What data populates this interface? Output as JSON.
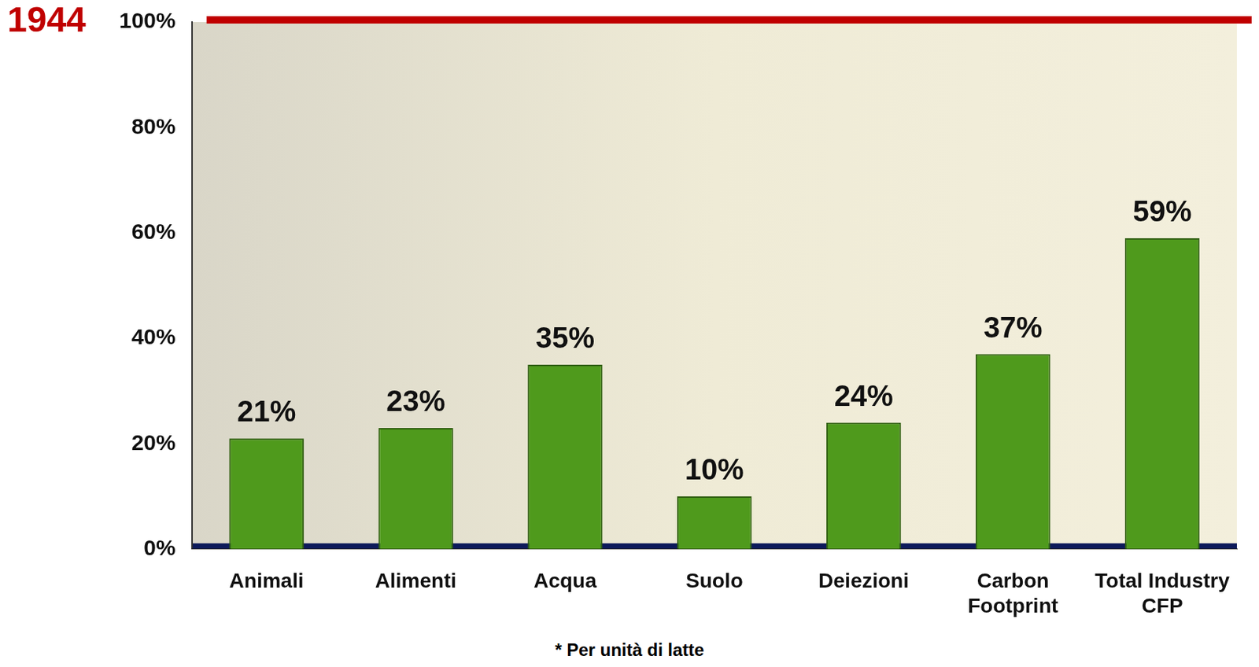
{
  "chart_data": {
    "type": "bar",
    "categories": [
      "Animali",
      "Alimenti",
      "Acqua",
      "Suolo",
      "Deiezioni",
      "Carbon Footprint",
      "Total Industry CFP"
    ],
    "values": [
      21,
      23,
      35,
      10,
      24,
      37,
      59
    ],
    "value_labels": [
      "21%",
      "23%",
      "35%",
      "10%",
      "24%",
      "37%",
      "59%"
    ],
    "data_labels": true,
    "color": "#4f9a1c",
    "ylim": [
      0,
      100
    ],
    "yticks": [
      {
        "value": 0,
        "label": "0%"
      },
      {
        "value": 20,
        "label": "20%"
      },
      {
        "value": 40,
        "label": "40%"
      },
      {
        "value": 60,
        "label": "60%"
      },
      {
        "value": 80,
        "label": "80%"
      },
      {
        "value": 100,
        "label": "100%"
      }
    ],
    "grid": false,
    "annotations": [
      {
        "text": "1944",
        "y": 100,
        "color": "#c00000"
      }
    ],
    "footnote": "* Per unità di latte"
  }
}
